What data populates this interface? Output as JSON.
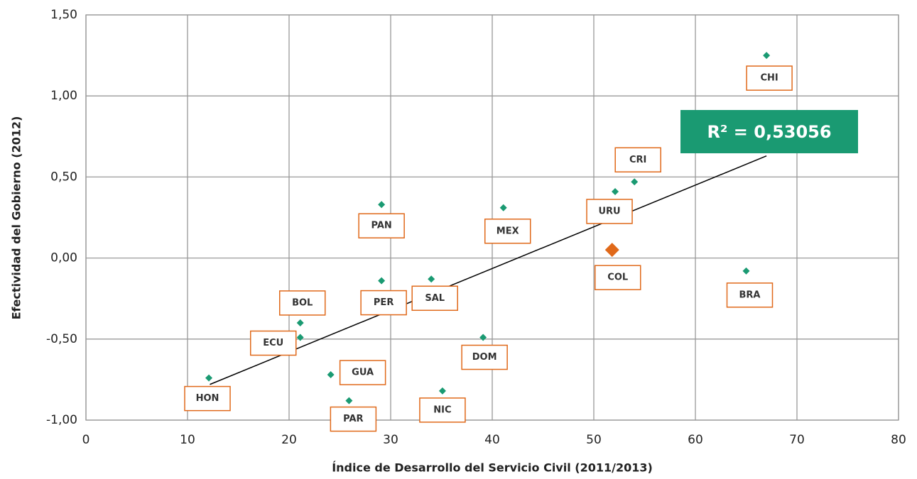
{
  "chart_data": {
    "type": "scatter",
    "xlabel": "Índice de Desarrollo del Servicio Civil (2011/2013)",
    "ylabel": "Efectividad del Gobierno (2012)",
    "xlim": [
      0,
      80
    ],
    "xticks": [
      0,
      10,
      20,
      30,
      40,
      50,
      60,
      70,
      80
    ],
    "ylim": [
      -1,
      1.5
    ],
    "yticks": [
      {
        "value": -1,
        "label": "-1,00"
      },
      {
        "value": -0.5,
        "label": "-0,50"
      },
      {
        "value": 0,
        "label": "0,00"
      },
      {
        "value": 0.5,
        "label": "0,50"
      },
      {
        "value": 1,
        "label": "1,00"
      },
      {
        "value": 1.5,
        "label": "1,50"
      }
    ],
    "grid": true,
    "color": "#1a9a72",
    "highlight_color": "#e0691a",
    "points": [
      {
        "label": "CHI",
        "x": 67,
        "y": 1.25
      },
      {
        "label": "CRI",
        "x": 54,
        "y": 0.47
      },
      {
        "label": "URU",
        "x": 52.1,
        "y": 0.41
      },
      {
        "label": "MEX",
        "x": 41.1,
        "y": 0.31
      },
      {
        "label": "PAN",
        "x": 29.1,
        "y": 0.33
      },
      {
        "label": "COL",
        "x": 51.8,
        "y": 0.05,
        "highlight": true
      },
      {
        "label": "BRA",
        "x": 65,
        "y": -0.08
      },
      {
        "label": "PER",
        "x": 29.1,
        "y": -0.14
      },
      {
        "label": "SAL",
        "x": 34,
        "y": -0.13
      },
      {
        "label": "BOL",
        "x": 21.1,
        "y": -0.4
      },
      {
        "label": "ECU",
        "x": 21.1,
        "y": -0.49
      },
      {
        "label": "DOM",
        "x": 39.1,
        "y": -0.49
      },
      {
        "label": "GUA",
        "x": 24.1,
        "y": -0.72
      },
      {
        "label": "HON",
        "x": 12.1,
        "y": -0.74
      },
      {
        "label": "NIC",
        "x": 35.1,
        "y": -0.82
      },
      {
        "label": "PAR",
        "x": 25.9,
        "y": -0.88
      }
    ],
    "trendline": {
      "x": [
        12.2,
        67
      ],
      "y": [
        -0.78,
        0.63
      ],
      "label": "R² = 0,53056",
      "color": "#000000"
    }
  }
}
